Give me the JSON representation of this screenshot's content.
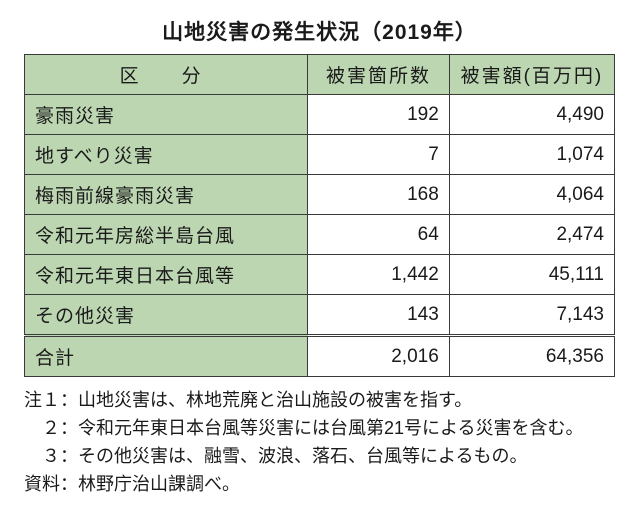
{
  "title": "山地災害の発生状況（2019年）",
  "colors": {
    "header_bg": "#bdd6b2",
    "border": "#3a3a3a",
    "text": "#1a1a1a",
    "page_bg": "#ffffff"
  },
  "table": {
    "columns": [
      {
        "key": "category",
        "label": "区　分"
      },
      {
        "key": "count",
        "label": "被害箇所数"
      },
      {
        "key": "value",
        "label": "被害額(百万円)"
      }
    ],
    "rows": [
      {
        "category": "豪雨災害",
        "count": "192",
        "value": "4,490"
      },
      {
        "category": "地すべり災害",
        "count": "7",
        "value": "1,074"
      },
      {
        "category": "梅雨前線豪雨災害",
        "count": "168",
        "value": "4,064"
      },
      {
        "category": "令和元年房総半島台風",
        "count": "64",
        "value": "2,474"
      },
      {
        "category": "令和元年東日本台風等",
        "count": "1,442",
        "value": "45,111"
      },
      {
        "category": "その他災害",
        "count": "143",
        "value": "7,143"
      }
    ],
    "total": {
      "category": "合計",
      "count": "2,016",
      "value": "64,356"
    }
  },
  "notes": {
    "items": [
      {
        "label": "注１：",
        "text": "山地災害は、林地荒廃と治山施設の被害を指す。"
      },
      {
        "label": "　２：",
        "text": "令和元年東日本台風等災害には台風第21号による災害を含む。"
      },
      {
        "label": "　３：",
        "text": "その他災害は、融雪、波浪、落石、台風等によるもの。"
      }
    ],
    "source": {
      "label": "資料：",
      "text": "林野庁治山課調べ。"
    }
  }
}
